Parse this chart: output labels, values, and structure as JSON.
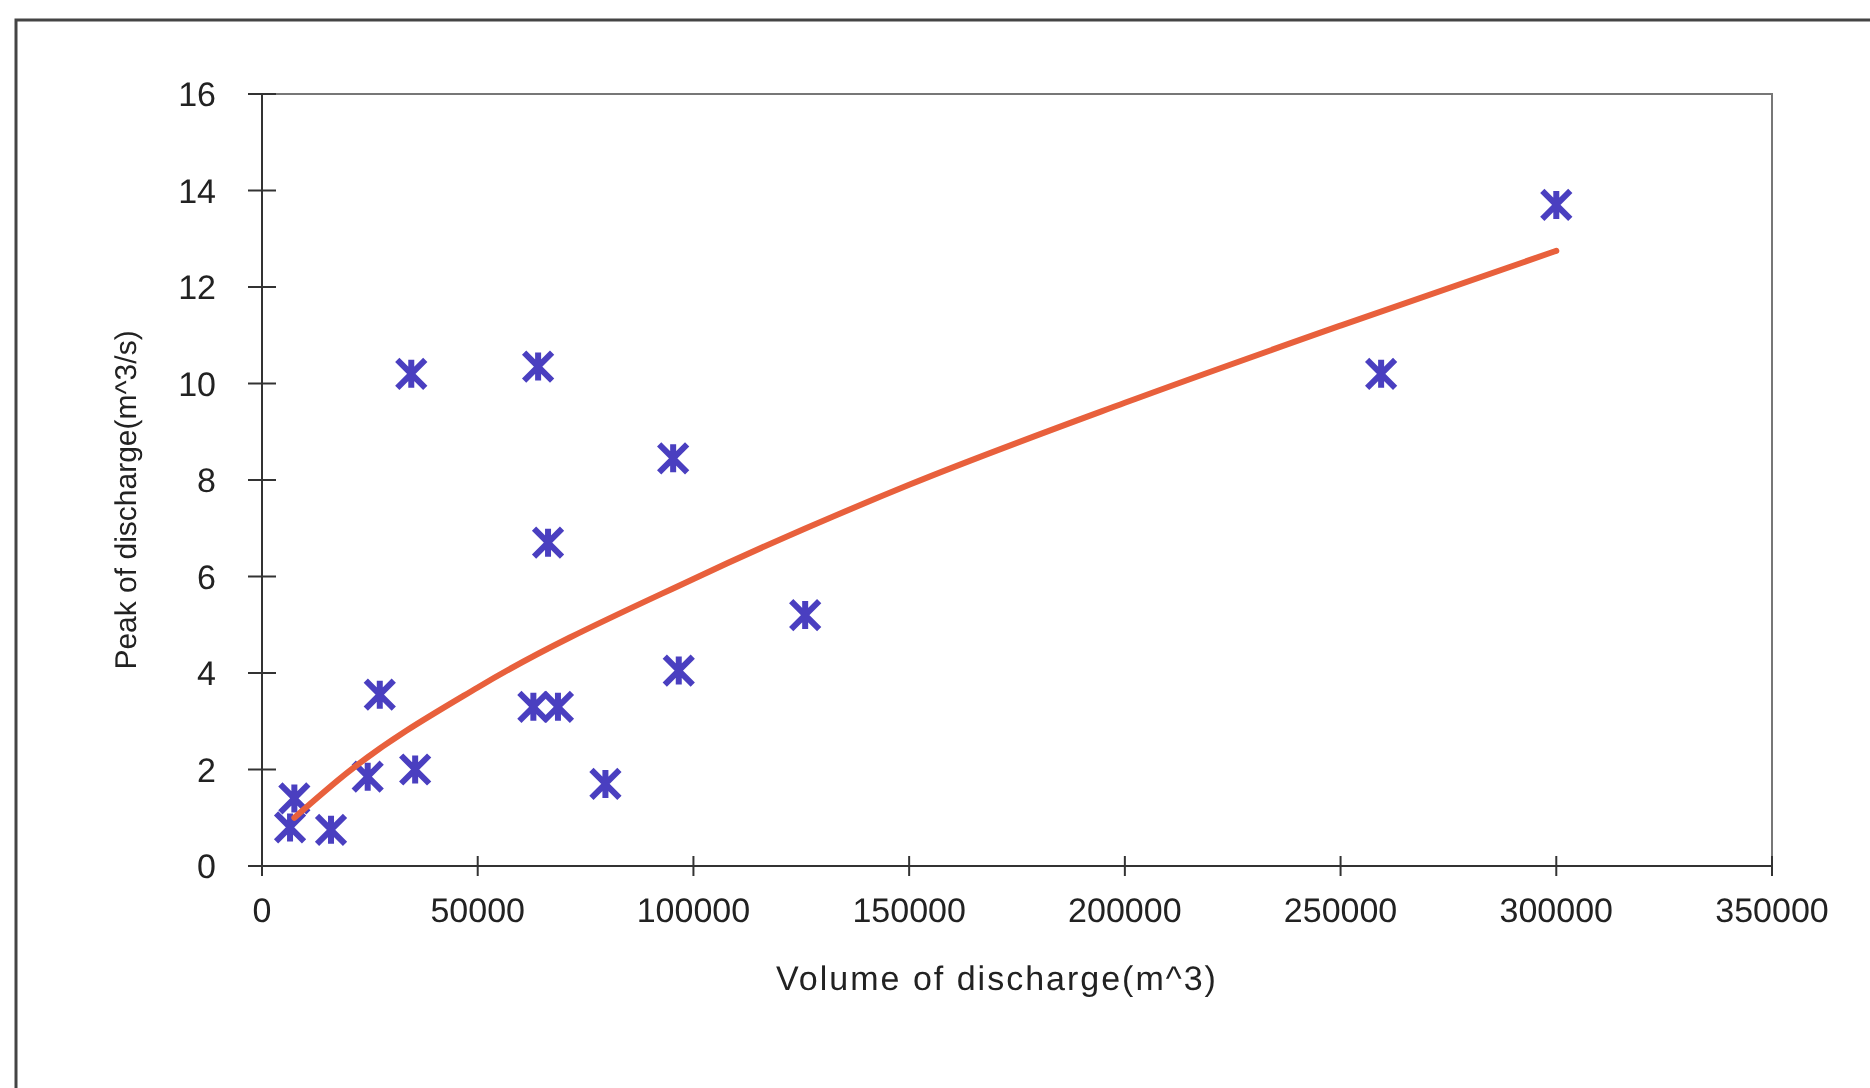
{
  "chart_data": {
    "type": "scatter",
    "xlabel": "Volume of discharge(m^3)",
    "ylabel": "Peak of discharge(m^3/s)",
    "xlim": [
      0,
      350000
    ],
    "xticks": [
      0,
      50000,
      100000,
      150000,
      200000,
      250000,
      300000,
      350000
    ],
    "ylim": [
      0,
      16
    ],
    "yticks": [
      0,
      2,
      4,
      6,
      8,
      10,
      12,
      14,
      16
    ],
    "grid": false,
    "marker": "cross",
    "series": [
      {
        "color": "#4a3fc0",
        "x": [
          7500,
          6500,
          16000,
          24500,
          27300,
          34600,
          35500,
          64000,
          62900,
          68600,
          66300,
          79600,
          95300,
          96600,
          125900,
          259400,
          300000
        ],
        "values": [
          1.4,
          0.8,
          0.75,
          1.85,
          3.55,
          10.2,
          2.0,
          10.35,
          3.3,
          3.3,
          6.7,
          1.7,
          8.45,
          4.05,
          5.2,
          10.2,
          13.7
        ]
      },
      {
        "type": "line",
        "color": "#e8603c",
        "marker": "none",
        "x": [
          7500,
          20000,
          50000,
          100000,
          150000,
          200000,
          250000,
          300000
        ],
        "values": [
          1.0,
          1.95,
          3.7,
          5.95,
          7.9,
          9.6,
          11.2,
          12.75
        ]
      }
    ]
  }
}
